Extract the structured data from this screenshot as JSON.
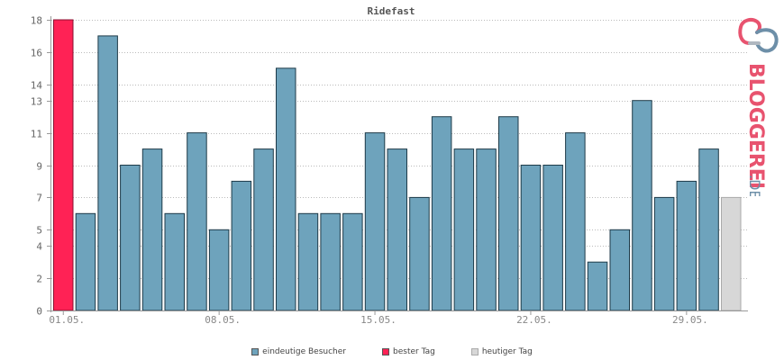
{
  "chart_data": {
    "type": "bar",
    "title": "Ridefast",
    "xlabel": "",
    "ylabel": "",
    "ylim": [
      0,
      18
    ],
    "y_ticks": [
      "0",
      "2",
      "4",
      "5",
      "7",
      "9",
      "11",
      "13",
      "14",
      "16",
      "18"
    ],
    "x_tick_labels": [
      "01.05.",
      "08.05.",
      "15.05.",
      "22.05.",
      "29.05."
    ],
    "x_tick_index": [
      0,
      7,
      14,
      21,
      28
    ],
    "grid": true,
    "legend_position": "bottom",
    "values": [
      18,
      6,
      17,
      9,
      10,
      6,
      11,
      5,
      8,
      10,
      15,
      6,
      6,
      6,
      11,
      10,
      7,
      12,
      10,
      10,
      12,
      9,
      9,
      11,
      3,
      5,
      13,
      7,
      8,
      10,
      7
    ],
    "series": [
      {
        "name": "eindeutige Besucher",
        "color": "#6ea3bc"
      },
      {
        "name": "bester Tag",
        "color": "#ff2255"
      },
      {
        "name": "heutiger Tag",
        "color": "#d7d7d7"
      }
    ],
    "best_index": 0,
    "today_index": 30
  },
  "logo": {
    "text_main": "BLOGGEREI",
    "text_suffix": ".DE",
    "colors": {
      "pink": "#e8536f",
      "blue": "#6d8fa8",
      "grey": "#b0b8c0"
    }
  }
}
